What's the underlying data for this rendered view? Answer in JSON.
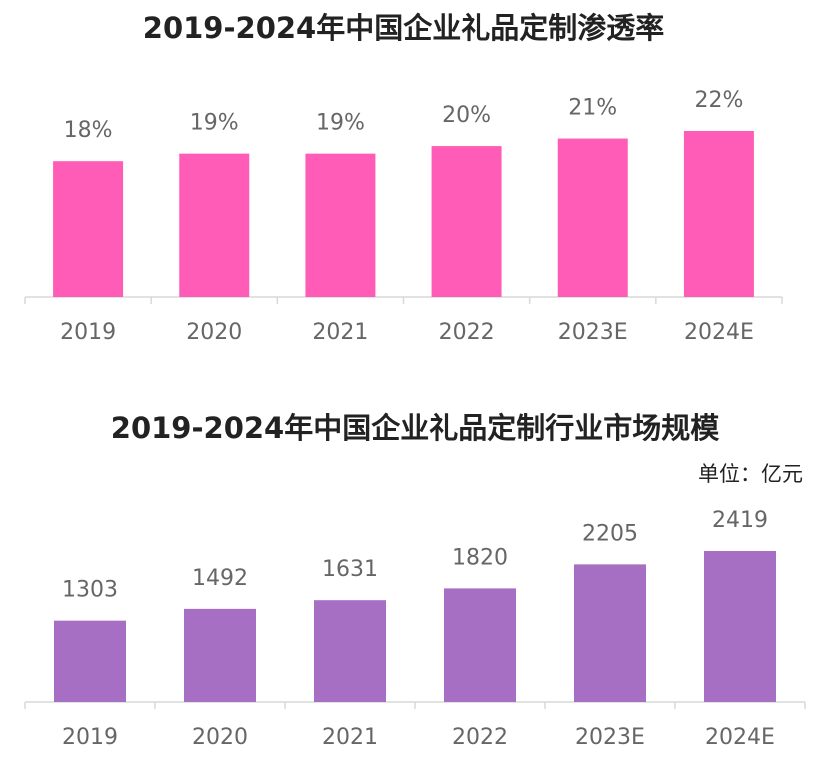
{
  "chart_data": [
    {
      "type": "bar",
      "title": "2019-2024年中国企业礼品定制渗透率",
      "categories": [
        "2019",
        "2020",
        "2021",
        "2022",
        "2023E",
        "2024E"
      ],
      "values": [
        18,
        19,
        19,
        20,
        21,
        22
      ],
      "value_labels": [
        "18%",
        "19%",
        "19%",
        "20%",
        "21%",
        "22%"
      ],
      "color": "#ff5cb8"
    },
    {
      "type": "bar",
      "title": "2019-2024年中国企业礼品定制行业市场规模",
      "unit_label": "单位：亿元",
      "categories": [
        "2019",
        "2020",
        "2021",
        "2022",
        "2023E",
        "2024E"
      ],
      "values": [
        1303,
        1492,
        1631,
        1820,
        2205,
        2419
      ],
      "color": "#a66fc4"
    }
  ]
}
